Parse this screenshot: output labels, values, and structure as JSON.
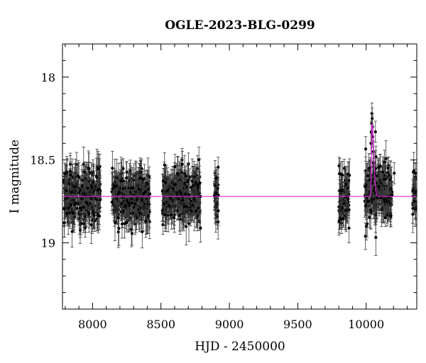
{
  "chart_data": {
    "type": "scatter",
    "title": "OGLE-2023-BLG-0299",
    "xlabel": "HJD - 2450000",
    "ylabel": "I magnitude",
    "xlim": [
      7780,
      10370
    ],
    "ylim": [
      19.4,
      17.8
    ],
    "y_inverted": true,
    "x_ticks": [
      8000,
      8500,
      9000,
      9500,
      10000
    ],
    "x_tick_labels": [
      "8000",
      "8500",
      "9000",
      "9500",
      "10000"
    ],
    "y_ticks": [
      18,
      18.5,
      19
    ],
    "y_tick_labels": [
      "18",
      "18.5",
      "19"
    ],
    "grid": false,
    "baseline_mag": 18.72,
    "typical_error": 0.08,
    "colors": {
      "points": "#000000",
      "errorbars": "#3a3a3a",
      "model": "#e020e0"
    },
    "seasons": [
      {
        "x_start": 7790,
        "x_end": 8060,
        "mean_mag": 18.72,
        "scatter": 0.08
      },
      {
        "x_start": 8140,
        "x_end": 8420,
        "mean_mag": 18.72,
        "scatter": 0.08
      },
      {
        "x_start": 8510,
        "x_end": 8790,
        "mean_mag": 18.72,
        "scatter": 0.08
      },
      {
        "x_start": 8890,
        "x_end": 8920,
        "mean_mag": 18.72,
        "scatter": 0.07
      },
      {
        "x_start": 9800,
        "x_end": 9880,
        "mean_mag": 18.72,
        "scatter": 0.08
      },
      {
        "x_start": 9990,
        "x_end": 10190,
        "mean_mag": 18.7,
        "scatter": 0.08
      },
      {
        "x_start": 10340,
        "x_end": 10365,
        "mean_mag": 18.72,
        "scatter": 0.06
      }
    ],
    "event_points": [
      {
        "x": 10035,
        "y": 18.4
      },
      {
        "x": 10038,
        "y": 18.33
      },
      {
        "x": 10040,
        "y": 18.28
      },
      {
        "x": 10042,
        "y": 18.22
      },
      {
        "x": 10044,
        "y": 18.25
      },
      {
        "x": 10046,
        "y": 18.3
      },
      {
        "x": 10048,
        "y": 18.36
      },
      {
        "x": 10052,
        "y": 18.45
      },
      {
        "x": 10056,
        "y": 18.52
      },
      {
        "x": 10061,
        "y": 18.58
      },
      {
        "x": 10068,
        "y": 18.33
      },
      {
        "x": 10072,
        "y": 18.48
      },
      {
        "x": 10030,
        "y": 18.55
      },
      {
        "x": 10025,
        "y": 18.62
      },
      {
        "x": 10160,
        "y": 18.55
      },
      {
        "x": 10180,
        "y": 18.84
      },
      {
        "x": 10205,
        "y": 18.58
      },
      {
        "x": 10360,
        "y": 18.58
      },
      {
        "x": 10352,
        "y": 18.75
      }
    ],
    "model": {
      "baseline": 18.72,
      "peak_x": 10043,
      "peak_mag": 18.28,
      "rise_tau": 6,
      "decay_tau": 18
    }
  }
}
